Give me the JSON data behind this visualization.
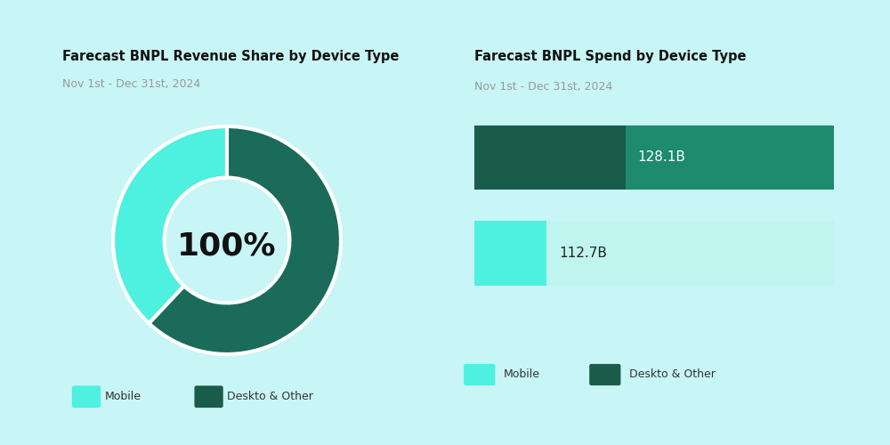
{
  "bg_color": "#c8f5f5",
  "card_bg": "#ffffff",
  "left_title": "Farecast BNPL Revenue Share by Device Type",
  "left_subtitle": "Nov 1st - Dec 31st, 2024",
  "donut_center_text": "100%",
  "donut_mobile_pct": 38,
  "donut_desktop_pct": 62,
  "donut_color_mobile": "#4ef0e0",
  "donut_color_desktop": "#1a6b5a",
  "right_title": "Farecast BNPL Spend by Device Type",
  "right_subtitle": "Nov 1st - Dec 31st, 2024",
  "bar_desktop_value": 128.1,
  "bar_mobile_value": 112.7,
  "bar_desktop_label": "128.1B",
  "bar_mobile_label": "112.7B",
  "bar_desktop_dark": "#1a5c4a",
  "bar_desktop_light": "#1e8a6e",
  "bar_mobile_bright": "#4ef0e0",
  "bar_mobile_light": "#c0f5ef",
  "bar_desktop_split": 0.42,
  "bar_mobile_split": 0.2,
  "legend_mobile_label": "Mobile",
  "legend_desktop_label": "Deskto & Other",
  "legend_color_mobile": "#4ef0e0",
  "legend_color_desktop": "#1a5c4a"
}
